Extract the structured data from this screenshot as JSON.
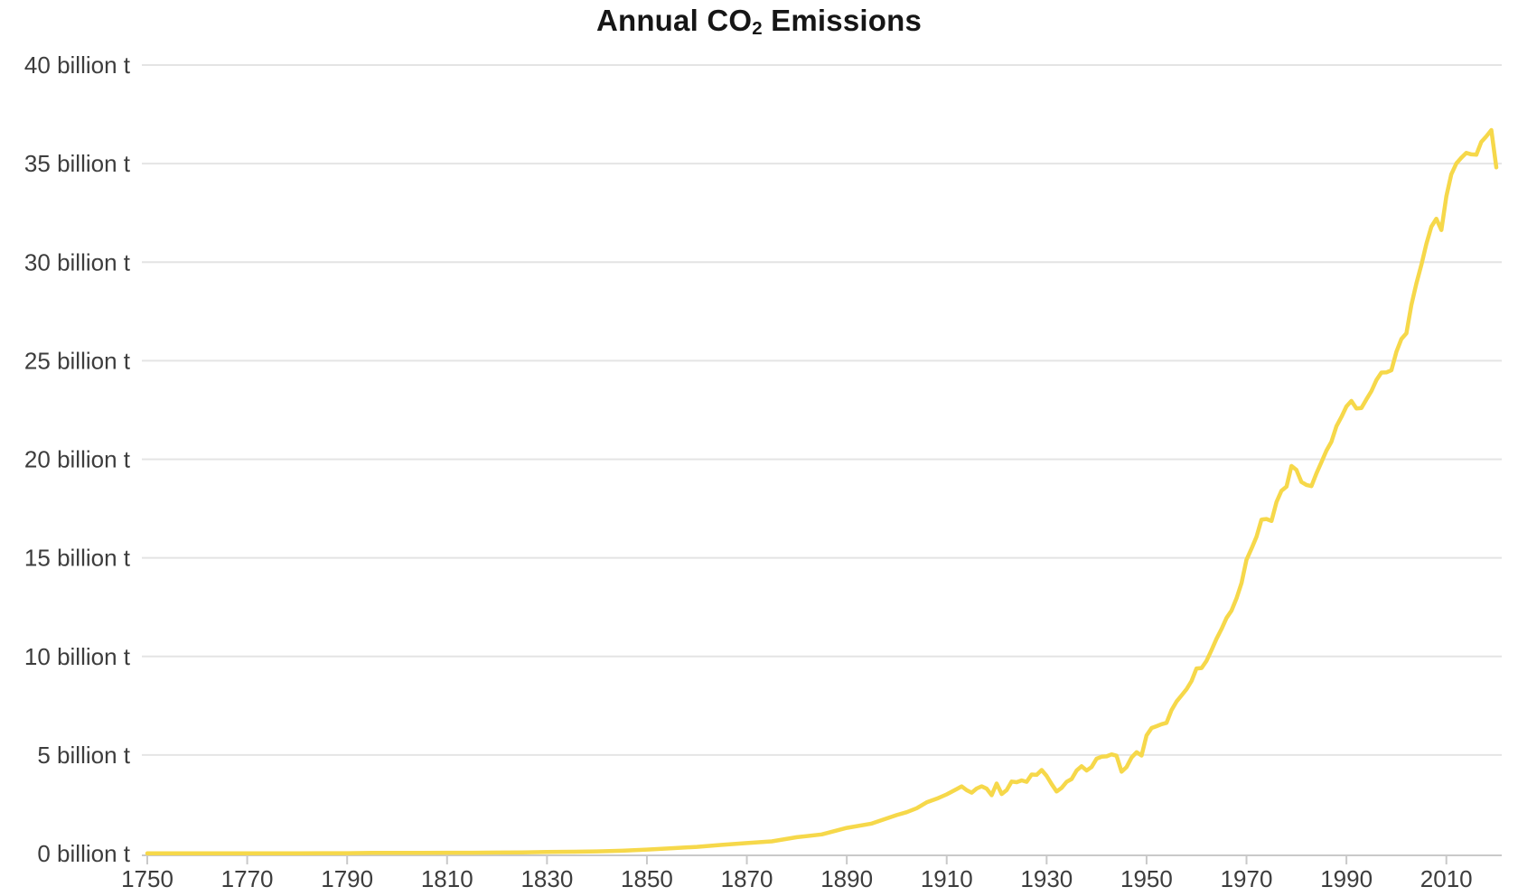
{
  "chart_data": {
    "type": "line",
    "title": {
      "prefix": "Annual CO",
      "subscript": "2",
      "suffix": " Emissions"
    },
    "x_axis": {
      "range": [
        1750,
        2020
      ],
      "ticks": [
        1750,
        1770,
        1790,
        1810,
        1830,
        1850,
        1870,
        1890,
        1910,
        1930,
        1950,
        1970,
        1990,
        2010
      ],
      "tick_labels": [
        "1750",
        "1770",
        "1790",
        "1810",
        "1830",
        "1850",
        "1870",
        "1890",
        "1910",
        "1930",
        "1950",
        "1970",
        "1990",
        "2010"
      ]
    },
    "y_axis": {
      "range": [
        0,
        40
      ],
      "unit": "billion t",
      "ticks": [
        0,
        5,
        10,
        15,
        20,
        25,
        30,
        35,
        40
      ],
      "tick_labels": [
        "0 billion t",
        "5 billion t",
        "10 billion t",
        "15 billion t",
        "20 billion t",
        "25 billion t",
        "30 billion t",
        "35 billion t",
        "40 billion t"
      ]
    },
    "grid": {
      "horizontal": true,
      "vertical": false
    },
    "legend": "none",
    "colors": {
      "line": "#F6D84A",
      "gridline": "#E4E4E4",
      "axis": "#C9C9C9",
      "tick_label": "#3D3D3D",
      "title": "#161616",
      "background": "#FFFFFF"
    },
    "series": [
      {
        "points": [
          [
            1750,
            0.01
          ],
          [
            1755,
            0.01
          ],
          [
            1760,
            0.01
          ],
          [
            1765,
            0.01
          ],
          [
            1770,
            0.01
          ],
          [
            1775,
            0.01
          ],
          [
            1780,
            0.01
          ],
          [
            1785,
            0.02
          ],
          [
            1790,
            0.02
          ],
          [
            1795,
            0.03
          ],
          [
            1800,
            0.03
          ],
          [
            1805,
            0.03
          ],
          [
            1810,
            0.04
          ],
          [
            1815,
            0.04
          ],
          [
            1820,
            0.05
          ],
          [
            1825,
            0.06
          ],
          [
            1830,
            0.08
          ],
          [
            1835,
            0.09
          ],
          [
            1840,
            0.11
          ],
          [
            1845,
            0.14
          ],
          [
            1850,
            0.2
          ],
          [
            1855,
            0.27
          ],
          [
            1860,
            0.34
          ],
          [
            1865,
            0.44
          ],
          [
            1870,
            0.53
          ],
          [
            1875,
            0.62
          ],
          [
            1880,
            0.83
          ],
          [
            1885,
            0.97
          ],
          [
            1890,
            1.3
          ],
          [
            1895,
            1.52
          ],
          [
            1900,
            1.95
          ],
          [
            1902,
            2.1
          ],
          [
            1904,
            2.3
          ],
          [
            1906,
            2.6
          ],
          [
            1908,
            2.78
          ],
          [
            1910,
            3.0
          ],
          [
            1912,
            3.27
          ],
          [
            1913,
            3.41
          ],
          [
            1914,
            3.21
          ],
          [
            1915,
            3.09
          ],
          [
            1916,
            3.3
          ],
          [
            1917,
            3.41
          ],
          [
            1918,
            3.29
          ],
          [
            1919,
            2.96
          ],
          [
            1920,
            3.55
          ],
          [
            1921,
            3.02
          ],
          [
            1922,
            3.22
          ],
          [
            1923,
            3.65
          ],
          [
            1924,
            3.62
          ],
          [
            1925,
            3.71
          ],
          [
            1926,
            3.64
          ],
          [
            1927,
            4.01
          ],
          [
            1928,
            3.99
          ],
          [
            1929,
            4.24
          ],
          [
            1930,
            3.94
          ],
          [
            1931,
            3.52
          ],
          [
            1932,
            3.15
          ],
          [
            1933,
            3.33
          ],
          [
            1934,
            3.64
          ],
          [
            1935,
            3.78
          ],
          [
            1936,
            4.21
          ],
          [
            1937,
            4.43
          ],
          [
            1938,
            4.21
          ],
          [
            1939,
            4.39
          ],
          [
            1940,
            4.81
          ],
          [
            1941,
            4.91
          ],
          [
            1942,
            4.93
          ],
          [
            1943,
            5.03
          ],
          [
            1944,
            4.96
          ],
          [
            1945,
            4.15
          ],
          [
            1946,
            4.39
          ],
          [
            1947,
            4.87
          ],
          [
            1948,
            5.14
          ],
          [
            1949,
            4.97
          ],
          [
            1950,
            5.99
          ],
          [
            1951,
            6.37
          ],
          [
            1952,
            6.46
          ],
          [
            1953,
            6.56
          ],
          [
            1954,
            6.63
          ],
          [
            1955,
            7.28
          ],
          [
            1956,
            7.71
          ],
          [
            1957,
            8.02
          ],
          [
            1958,
            8.34
          ],
          [
            1959,
            8.75
          ],
          [
            1960,
            9.39
          ],
          [
            1961,
            9.41
          ],
          [
            1962,
            9.78
          ],
          [
            1963,
            10.32
          ],
          [
            1964,
            10.89
          ],
          [
            1965,
            11.39
          ],
          [
            1966,
            11.95
          ],
          [
            1967,
            12.32
          ],
          [
            1968,
            12.95
          ],
          [
            1969,
            13.72
          ],
          [
            1970,
            14.9
          ],
          [
            1971,
            15.46
          ],
          [
            1972,
            16.07
          ],
          [
            1973,
            16.94
          ],
          [
            1974,
            16.97
          ],
          [
            1975,
            16.87
          ],
          [
            1976,
            17.83
          ],
          [
            1977,
            18.4
          ],
          [
            1978,
            18.61
          ],
          [
            1979,
            19.66
          ],
          [
            1980,
            19.46
          ],
          [
            1981,
            18.85
          ],
          [
            1982,
            18.7
          ],
          [
            1983,
            18.64
          ],
          [
            1984,
            19.28
          ],
          [
            1985,
            19.86
          ],
          [
            1986,
            20.44
          ],
          [
            1987,
            20.89
          ],
          [
            1988,
            21.68
          ],
          [
            1989,
            22.15
          ],
          [
            1990,
            22.68
          ],
          [
            1991,
            22.96
          ],
          [
            1992,
            22.58
          ],
          [
            1993,
            22.6
          ],
          [
            1994,
            23.04
          ],
          [
            1995,
            23.46
          ],
          [
            1996,
            24.02
          ],
          [
            1997,
            24.4
          ],
          [
            1998,
            24.41
          ],
          [
            1999,
            24.52
          ],
          [
            2000,
            25.45
          ],
          [
            2001,
            26.1
          ],
          [
            2002,
            26.39
          ],
          [
            2003,
            27.83
          ],
          [
            2004,
            28.91
          ],
          [
            2005,
            29.87
          ],
          [
            2006,
            30.93
          ],
          [
            2007,
            31.8
          ],
          [
            2008,
            32.2
          ],
          [
            2009,
            31.63
          ],
          [
            2010,
            33.34
          ],
          [
            2011,
            34.46
          ],
          [
            2012,
            35.01
          ],
          [
            2013,
            35.3
          ],
          [
            2014,
            35.54
          ],
          [
            2015,
            35.47
          ],
          [
            2016,
            35.45
          ],
          [
            2017,
            36.1
          ],
          [
            2018,
            36.38
          ],
          [
            2019,
            36.7
          ],
          [
            2020,
            34.81
          ]
        ]
      }
    ]
  }
}
